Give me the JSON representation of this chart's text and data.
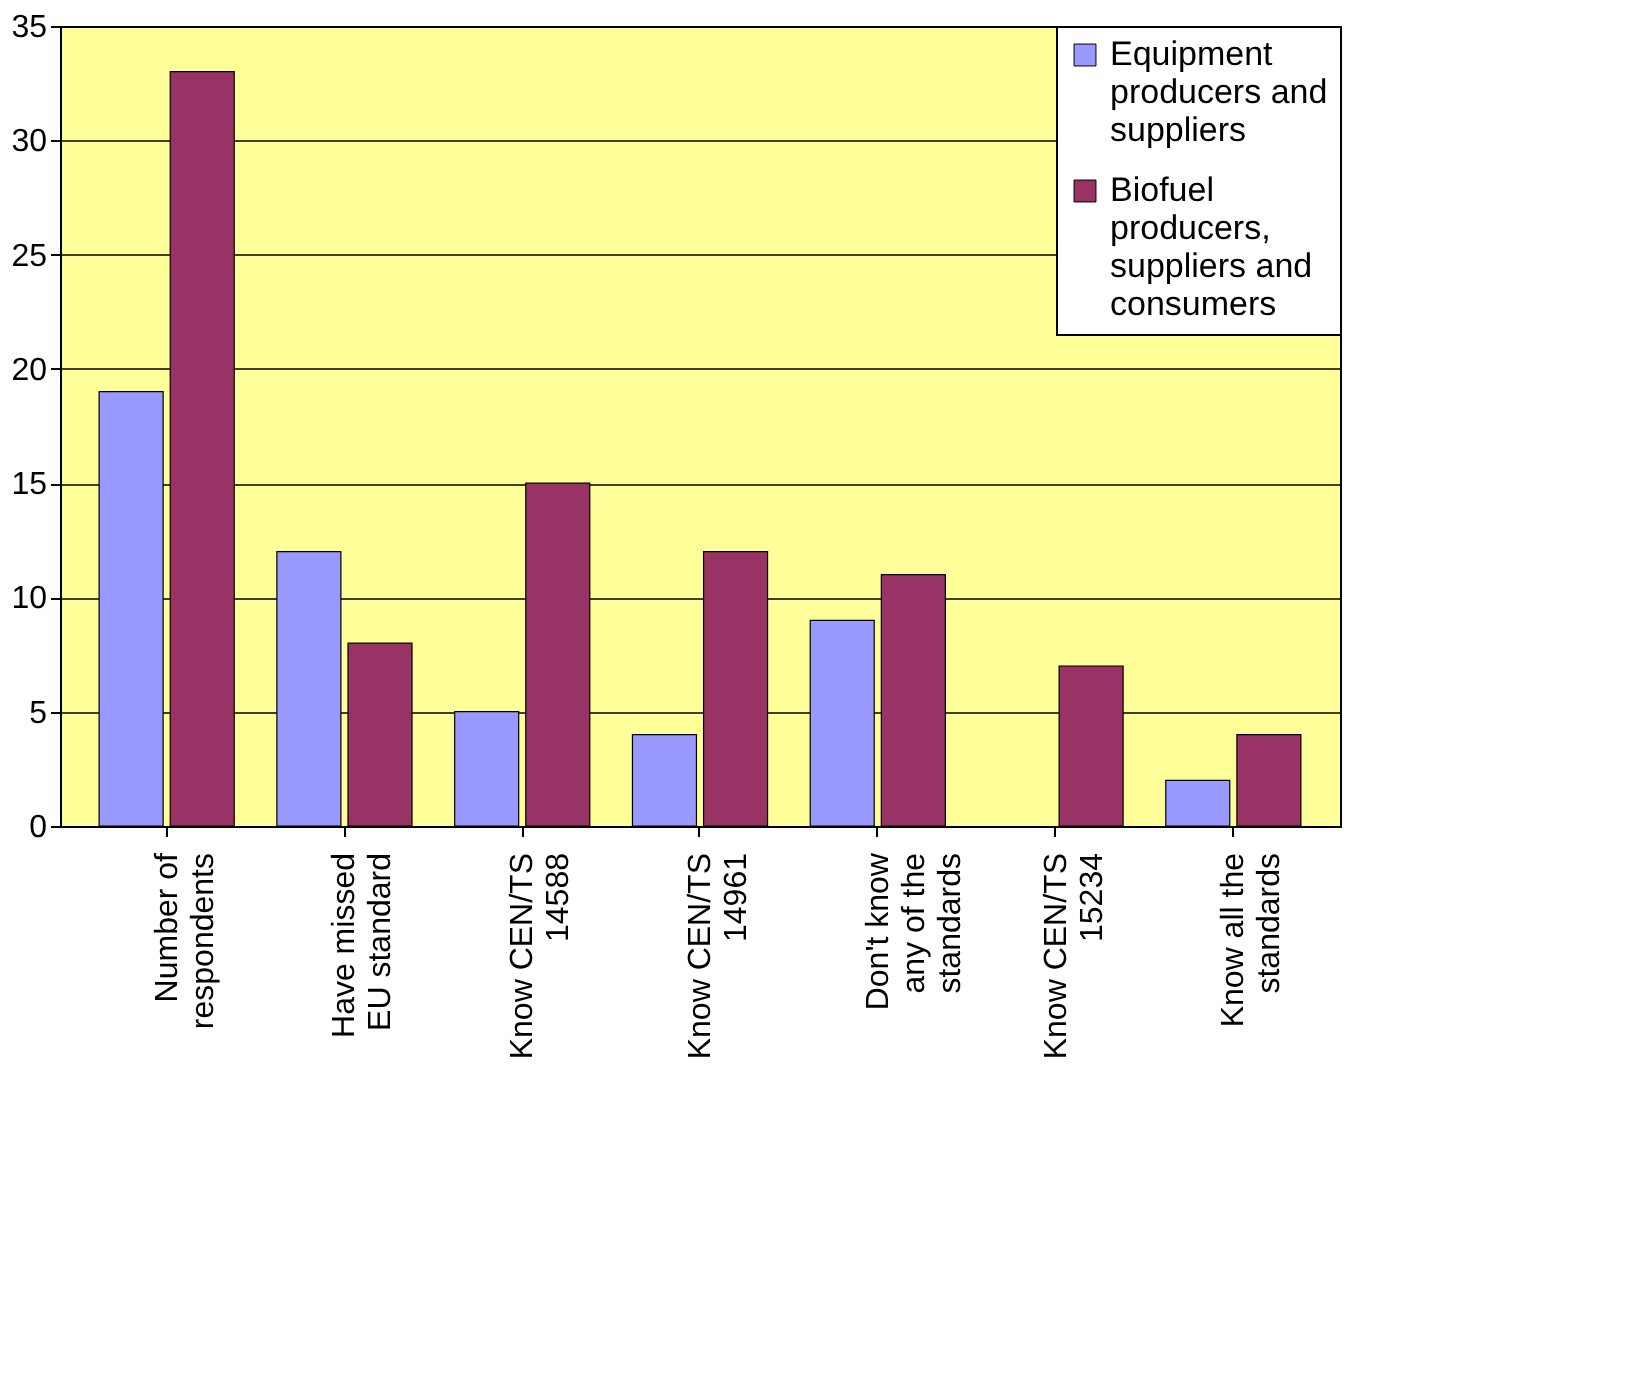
{
  "chart_data": {
    "type": "bar",
    "categories": [
      "Number of respondents",
      "Have missed EU standard",
      "Know CEN/TS 14588",
      "Know CEN/TS 14961",
      "Don't know any of the standards",
      "Know CEN/TS 15234",
      "Know all the standards"
    ],
    "series": [
      {
        "name": "Equipment producers and suppliers",
        "color": "#9999ff",
        "values": [
          19,
          12,
          5,
          4,
          9,
          null,
          2
        ]
      },
      {
        "name": "Biofuel producers, suppliers and consumers",
        "color": "#993366",
        "values": [
          33,
          8,
          15,
          12,
          11,
          7,
          4
        ]
      }
    ],
    "ylim": [
      0,
      35
    ],
    "yticks": [
      0,
      5,
      10,
      15,
      20,
      25,
      30,
      35
    ],
    "grid": "y",
    "legend": "top right"
  }
}
